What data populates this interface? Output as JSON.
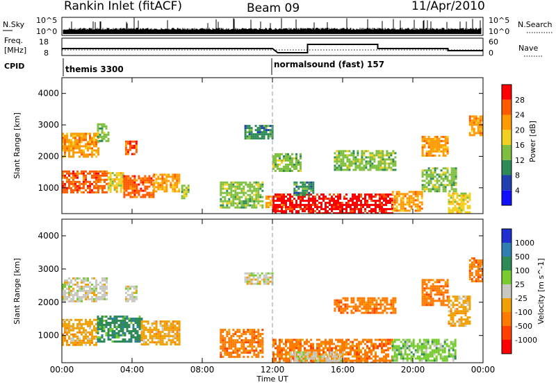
{
  "header": {
    "title": "Rankin Inlet (fitACF)",
    "beam": "Beam 09",
    "date": "11/Apr/2010"
  },
  "noise_panel": {
    "left_label": "N.Sky",
    "right_label": "N.Search",
    "left_ticks": [
      "10^5",
      "10^0"
    ],
    "right_ticks": [
      "10^5",
      "10^0"
    ]
  },
  "freq_panel": {
    "left_label_1": "Freq.",
    "left_label_2": "[MHz]",
    "right_label": "Nave",
    "left_ticks": [
      "18",
      "8"
    ],
    "right_ticks": [
      "60",
      "0"
    ]
  },
  "cpid": {
    "label": "CPID",
    "segments": [
      "themis 3300",
      "normalsound (fast) 157"
    ]
  },
  "colors": {
    "power": [
      "#1010ff",
      "#2040b0",
      "#2e8b57",
      "#7fbf3f",
      "#f2d020",
      "#ff9a00",
      "#ff5a00",
      "#ff0000"
    ],
    "velocity": [
      "#2030d0",
      "#2f7fb0",
      "#2e8b57",
      "#78cc30",
      "#c8c8c0",
      "#f0a000",
      "#ff7a00",
      "#ff4000",
      "#ff0000"
    ],
    "frame": "#000000",
    "ground_scatter": "#b8b8b0"
  },
  "chart_data": [
    {
      "type": "heatmap",
      "name": "power",
      "title": "",
      "xlabel": "Time UT",
      "ylabel": "Slant Range [km]",
      "colorbar_label": "Power [dB]",
      "xticks": [
        "00:00",
        "04:00",
        "08:00",
        "12:00",
        "16:00",
        "20:00",
        "00:00"
      ],
      "xlim_hours": [
        0,
        24
      ],
      "yticks": [
        "1000",
        "2000",
        "3000",
        "4000"
      ],
      "ylim_km": [
        180,
        4500
      ],
      "colorbar_ticks": [
        "4",
        "8",
        "12",
        "16",
        "20",
        "24",
        "28"
      ],
      "regions": [
        {
          "t0": 0.0,
          "t1": 2.1,
          "r0": 2000,
          "r1": 2750,
          "level": 5
        },
        {
          "t0": 2.0,
          "t1": 2.6,
          "r0": 2500,
          "r1": 3050,
          "level": 3
        },
        {
          "t0": 3.6,
          "t1": 4.3,
          "r0": 2050,
          "r1": 2500,
          "level": 6
        },
        {
          "t0": 0.0,
          "t1": 2.6,
          "r0": 850,
          "r1": 1550,
          "level": 6
        },
        {
          "t0": 2.6,
          "t1": 3.5,
          "r0": 900,
          "r1": 1500,
          "level": 4
        },
        {
          "t0": 3.5,
          "t1": 5.2,
          "r0": 700,
          "r1": 1400,
          "level": 6
        },
        {
          "t0": 5.2,
          "t1": 6.7,
          "r0": 900,
          "r1": 1450,
          "level": 5
        },
        {
          "t0": 6.8,
          "t1": 7.2,
          "r0": 650,
          "r1": 1100,
          "level": 3
        },
        {
          "t0": 9.0,
          "t1": 11.4,
          "r0": 350,
          "r1": 1200,
          "level": 3
        },
        {
          "t0": 10.4,
          "t1": 12.0,
          "r0": 2600,
          "r1": 3000,
          "level": 2
        },
        {
          "t0": 11.6,
          "t1": 12.6,
          "r0": 400,
          "r1": 750,
          "level": 5
        },
        {
          "t0": 12.0,
          "t1": 18.8,
          "r0": 200,
          "r1": 820,
          "level": 7
        },
        {
          "t0": 12.0,
          "t1": 13.6,
          "r0": 1550,
          "r1": 2100,
          "level": 3
        },
        {
          "t0": 13.2,
          "t1": 14.3,
          "r0": 800,
          "r1": 1200,
          "level": 2
        },
        {
          "t0": 15.5,
          "t1": 19.0,
          "r0": 1600,
          "r1": 2200,
          "level": 3
        },
        {
          "t0": 18.8,
          "t1": 20.5,
          "r0": 250,
          "r1": 900,
          "level": 5
        },
        {
          "t0": 20.5,
          "t1": 22.0,
          "r0": 2000,
          "r1": 2650,
          "level": 5
        },
        {
          "t0": 20.5,
          "t1": 22.5,
          "r0": 900,
          "r1": 1650,
          "level": 3
        },
        {
          "t0": 22.0,
          "t1": 23.3,
          "r0": 250,
          "r1": 850,
          "level": 4
        },
        {
          "t0": 23.2,
          "t1": 24.0,
          "r0": 2700,
          "r1": 3300,
          "level": 5
        }
      ]
    },
    {
      "type": "heatmap",
      "name": "velocity",
      "title": "",
      "xlabel": "Time UT",
      "ylabel": "Slant Range [km]",
      "colorbar_label": "Velocity [m s^-1]",
      "xticks": [
        "00:00",
        "04:00",
        "08:00",
        "12:00",
        "16:00",
        "20:00",
        "00:00"
      ],
      "xlim_hours": [
        0,
        24
      ],
      "yticks": [
        "1000",
        "2000",
        "3000",
        "4000"
      ],
      "ylim_km": [
        180,
        4500
      ],
      "colorbar_ticks": [
        "1000",
        "500",
        "100",
        "25",
        "-25",
        "-100",
        "-500",
        "-1000"
      ],
      "regions": [
        {
          "t0": 0.0,
          "t1": 2.5,
          "r0": 2000,
          "r1": 2750,
          "level": 4
        },
        {
          "t0": 3.6,
          "t1": 4.3,
          "r0": 2050,
          "r1": 2500,
          "level": 4
        },
        {
          "t0": 0.0,
          "t1": 2.0,
          "r0": 700,
          "r1": 1500,
          "level": 5
        },
        {
          "t0": 2.0,
          "t1": 4.5,
          "r0": 800,
          "r1": 1600,
          "level": 2
        },
        {
          "t0": 4.5,
          "t1": 6.7,
          "r0": 750,
          "r1": 1450,
          "level": 5
        },
        {
          "t0": 9.0,
          "t1": 11.4,
          "r0": 350,
          "r1": 1200,
          "level": 6
        },
        {
          "t0": 10.4,
          "t1": 12.0,
          "r0": 2550,
          "r1": 2900,
          "level": 4
        },
        {
          "t0": 12.0,
          "t1": 18.8,
          "r0": 200,
          "r1": 900,
          "level": 6
        },
        {
          "t0": 13.0,
          "t1": 16.0,
          "r0": 200,
          "r1": 520,
          "level": 4
        },
        {
          "t0": 15.5,
          "t1": 19.0,
          "r0": 1650,
          "r1": 2150,
          "level": 6
        },
        {
          "t0": 18.8,
          "t1": 22.4,
          "r0": 250,
          "r1": 900,
          "level": 3
        },
        {
          "t0": 20.5,
          "t1": 22.0,
          "r0": 1900,
          "r1": 2700,
          "level": 6
        },
        {
          "t0": 23.2,
          "t1": 24.0,
          "r0": 2600,
          "r1": 3350,
          "level": 6
        },
        {
          "t0": 22.0,
          "t1": 23.3,
          "r0": 1300,
          "r1": 2200,
          "level": 5
        }
      ]
    }
  ]
}
